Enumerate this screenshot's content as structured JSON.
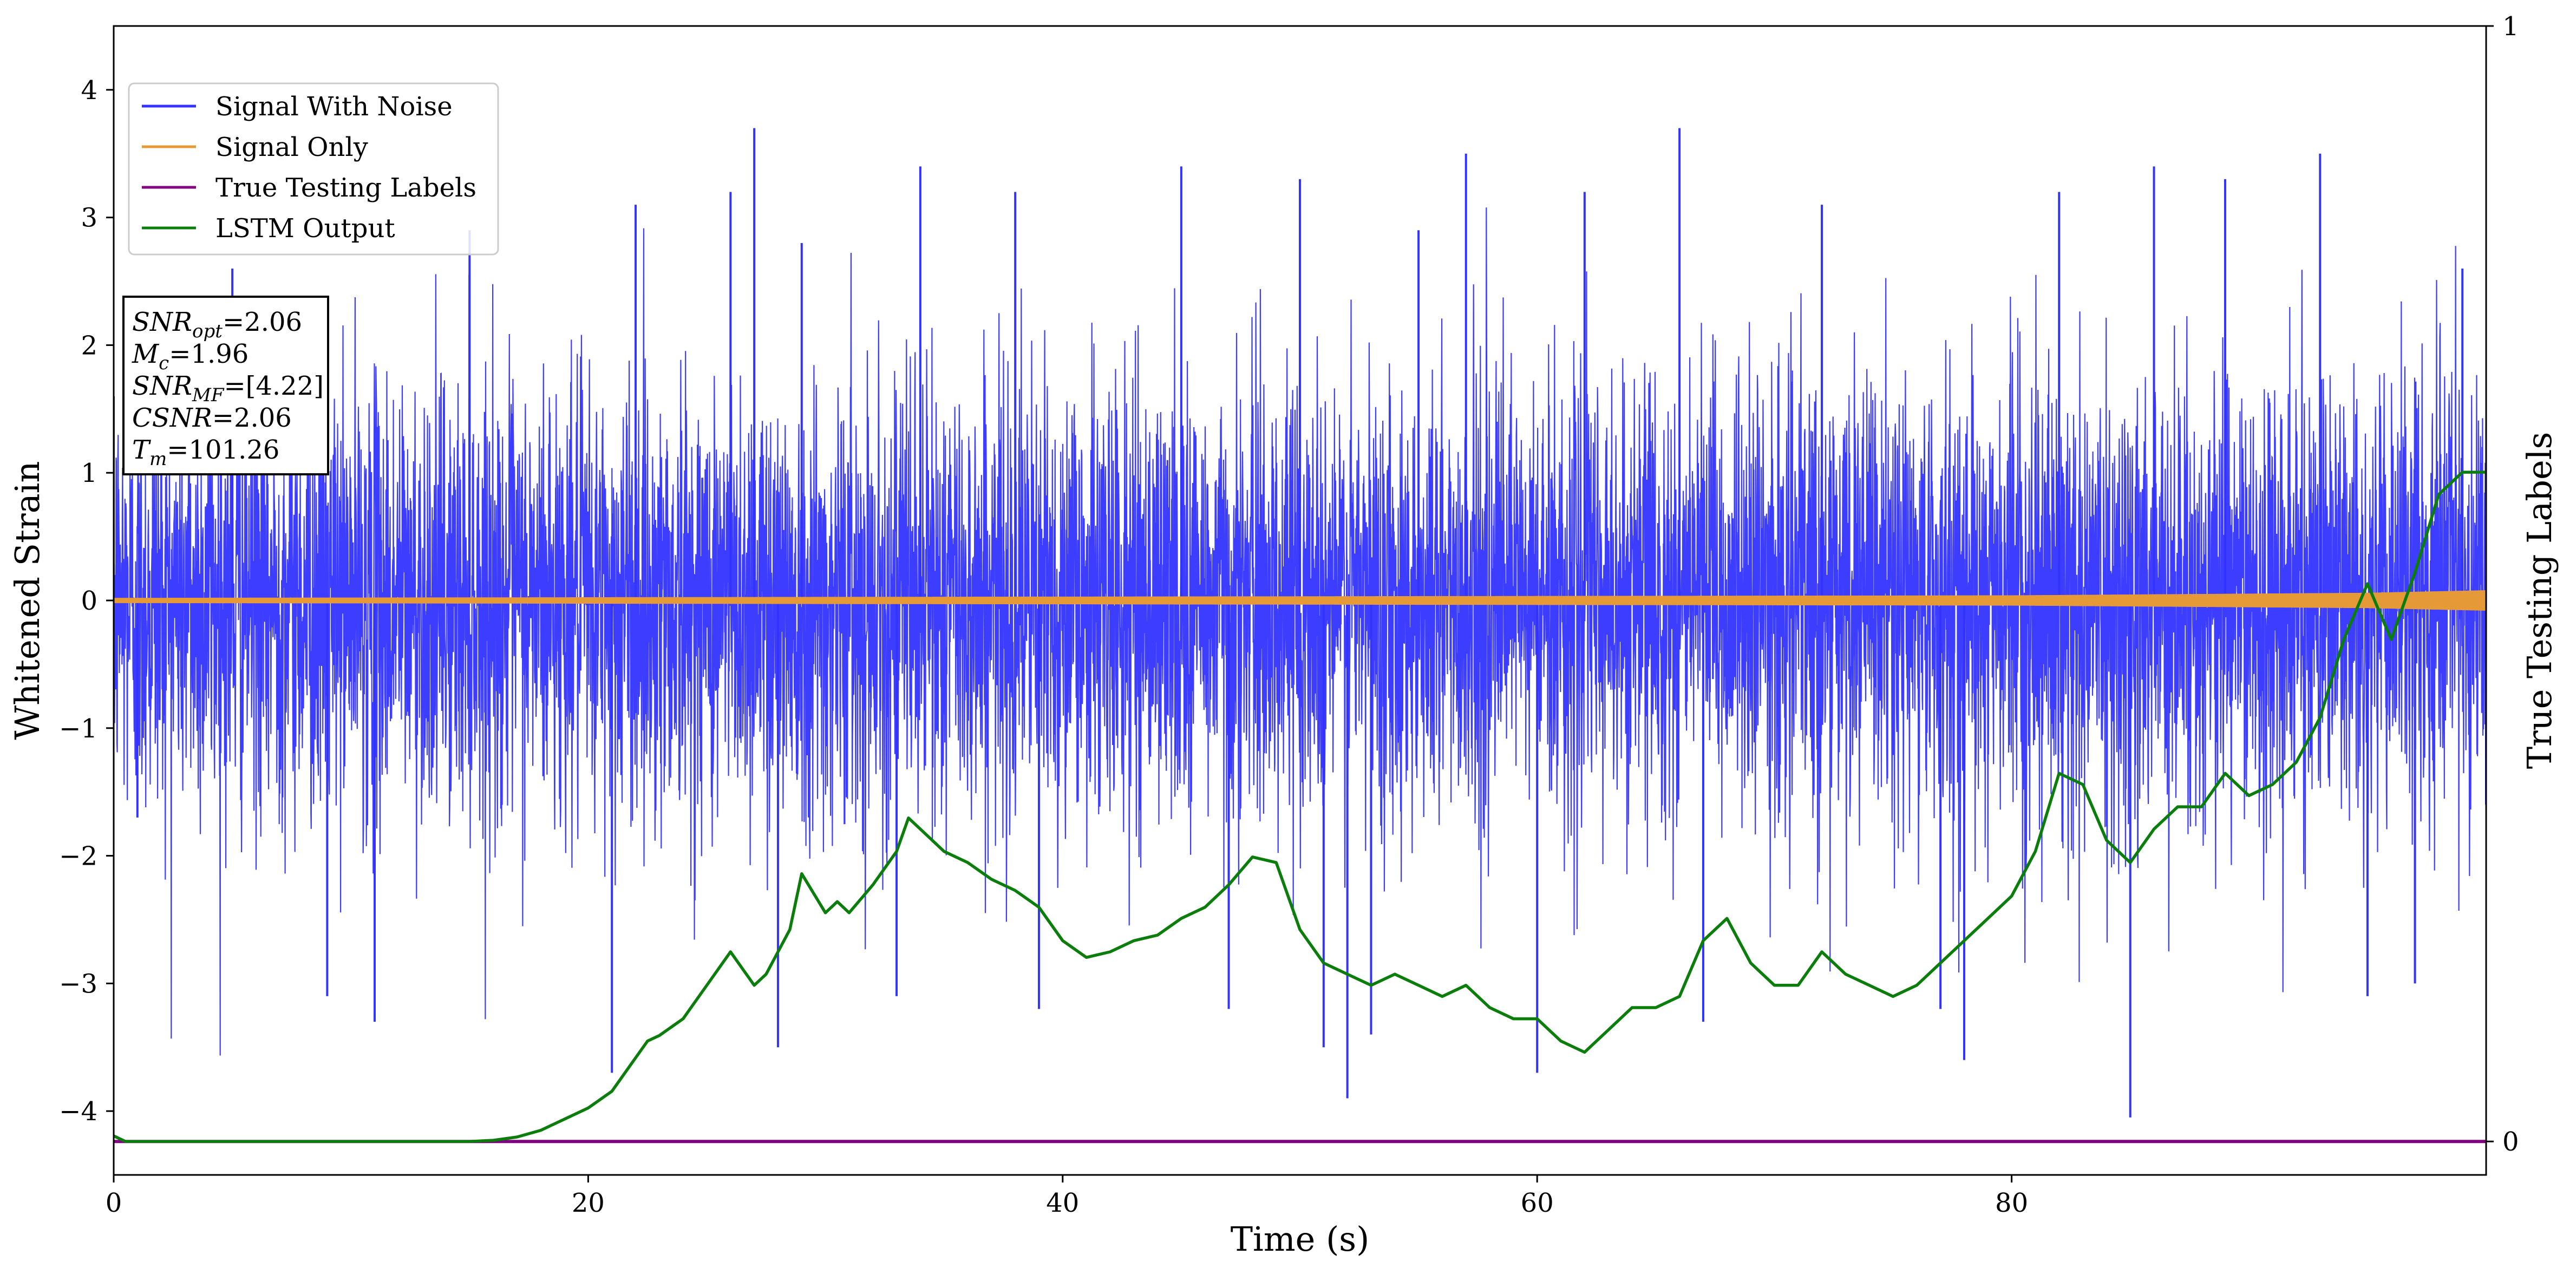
{
  "chart_data": {
    "type": "line",
    "xlabel": "Time (s)",
    "ylabel": "Whitened Strain",
    "y2label": "True Testing Labels",
    "xlim": [
      0,
      100
    ],
    "ylim": [
      -4.5,
      4.5
    ],
    "y2lim": [
      -0.03,
      1.0
    ],
    "xticks": [
      0,
      20,
      40,
      60,
      80
    ],
    "yticks": [
      -4,
      -3,
      -2,
      -1,
      0,
      1,
      2,
      3,
      4
    ],
    "y2ticks": [
      0,
      1
    ],
    "grid": false,
    "legend_position": "upper-left",
    "legend": [
      "Signal With Noise",
      "Signal Only",
      "True Testing Labels",
      "LSTM Output"
    ],
    "colors": {
      "signal_with_noise": "#3333ff",
      "signal_only": "#e69a37",
      "true_labels": "#800080",
      "lstm": "#0a7d0a"
    },
    "annotation": {
      "lines": [
        {
          "main": "SNR",
          "sub": "opt",
          "rest": "=2.06"
        },
        {
          "main": "M",
          "sub": "c",
          "rest": "=1.96"
        },
        {
          "main": "SNR",
          "sub": "MF",
          "rest": "=[4.22]"
        },
        {
          "main": "CSNR",
          "sub": "",
          "rest": "=2.06"
        },
        {
          "main": "T",
          "sub": "m",
          "rest": "=101.26"
        }
      ]
    },
    "series": [
      {
        "name": "Signal With Noise",
        "axis": "left",
        "style": "dense noise, approx. std 0.85, range about -4.1 to 3.7",
        "x": [
          0,
          1,
          5,
          9,
          11,
          15,
          21,
          22,
          26,
          27,
          28,
          29,
          33,
          34,
          38,
          39,
          45,
          47,
          50,
          51,
          52,
          53,
          55,
          57,
          60,
          62,
          66,
          67,
          72,
          77,
          78,
          82,
          85,
          86,
          89,
          93,
          95,
          97,
          99,
          100
        ],
        "y": [
          1.6,
          -1.7,
          2.6,
          -3.1,
          -3.3,
          2.9,
          -3.7,
          3.1,
          3.2,
          3.7,
          -3.5,
          2.8,
          -3.1,
          3.4,
          3.2,
          -3.2,
          3.4,
          -3.2,
          3.3,
          -3.5,
          -3.9,
          -3.4,
          2.9,
          3.5,
          -3.7,
          3.2,
          3.7,
          -3.3,
          3.1,
          -3.2,
          -3.6,
          3.2,
          -4.05,
          3.4,
          3.3,
          3.5,
          -3.1,
          -3.0,
          2.6,
          -1.6
        ]
      },
      {
        "name": "Signal Only",
        "axis": "left",
        "amplitude": [
          [
            0,
            0.02
          ],
          [
            80,
            0.04
          ],
          [
            95,
            0.06
          ],
          [
            100,
            0.08
          ]
        ]
      },
      {
        "name": "True Testing Labels",
        "axis": "right",
        "x": [
          0,
          100
        ],
        "y": [
          0,
          0
        ]
      },
      {
        "name": "LSTM Output",
        "axis": "right",
        "x": [
          0,
          0.5,
          2,
          5,
          10,
          15,
          16,
          17,
          18,
          19,
          20,
          21,
          21.5,
          22,
          22.5,
          23,
          24,
          25,
          26,
          27,
          27.5,
          28,
          28.5,
          29,
          30,
          30.5,
          31,
          32,
          32.5,
          33,
          33.5,
          34,
          35,
          36,
          37,
          38,
          39,
          40,
          41,
          42,
          43,
          44,
          45,
          46,
          47,
          48,
          49,
          50,
          51,
          52,
          53,
          54,
          55,
          56,
          57,
          58,
          59,
          60,
          61,
          62,
          63,
          64,
          65,
          66,
          67,
          68,
          69,
          70,
          71,
          72,
          73,
          74,
          75,
          76,
          77,
          78,
          79,
          80,
          81,
          82,
          83,
          84,
          85,
          86,
          87,
          88,
          89,
          90,
          91,
          92,
          93,
          94,
          95,
          96,
          97,
          98,
          99,
          100
        ],
        "y": [
          0.005,
          0.0,
          0.0,
          0.0,
          0.0,
          0.0,
          0.001,
          0.004,
          0.01,
          0.02,
          0.03,
          0.045,
          0.06,
          0.075,
          0.09,
          0.095,
          0.11,
          0.14,
          0.17,
          0.14,
          0.15,
          0.17,
          0.19,
          0.24,
          0.205,
          0.215,
          0.205,
          0.23,
          0.245,
          0.26,
          0.29,
          0.28,
          0.26,
          0.25,
          0.235,
          0.225,
          0.21,
          0.18,
          0.165,
          0.17,
          0.18,
          0.185,
          0.2,
          0.21,
          0.23,
          0.255,
          0.25,
          0.19,
          0.16,
          0.15,
          0.14,
          0.15,
          0.14,
          0.13,
          0.14,
          0.12,
          0.11,
          0.11,
          0.09,
          0.08,
          0.1,
          0.12,
          0.12,
          0.13,
          0.18,
          0.2,
          0.16,
          0.14,
          0.14,
          0.17,
          0.15,
          0.14,
          0.13,
          0.14,
          0.16,
          0.18,
          0.2,
          0.22,
          0.26,
          0.33,
          0.32,
          0.27,
          0.25,
          0.28,
          0.3,
          0.3,
          0.33,
          0.31,
          0.32,
          0.34,
          0.38,
          0.45,
          0.5,
          0.45,
          0.51,
          0.58,
          0.6,
          0.6
        ]
      }
    ]
  }
}
